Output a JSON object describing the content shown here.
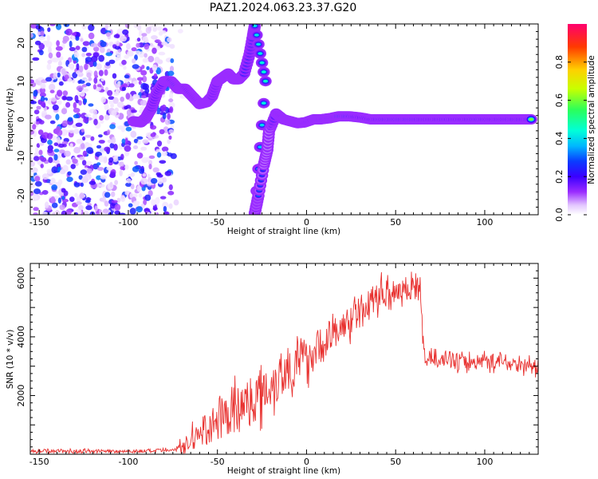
{
  "title": "PAZ1.2024.063.23.37.G20",
  "colors": {
    "snr_line": "#e8312f",
    "colormap": [
      "#ffffff",
      "#e3c7ff",
      "#9a2cff",
      "#3a00ff",
      "#0a3cff",
      "#00b7ff",
      "#00ffd9",
      "#2bff5a",
      "#c8ff00",
      "#ffd000",
      "#ff3a00",
      "#ff006e"
    ]
  },
  "chart_data": [
    {
      "type": "heatmap",
      "xlabel": "Height of straight line (km)",
      "ylabel": "Frequency (Hz)",
      "xlim": [
        -155,
        130
      ],
      "ylim": [
        -25,
        25
      ],
      "x_ticks": [
        -150,
        -100,
        -50,
        0,
        50,
        100
      ],
      "y_ticks": [
        -20,
        -10,
        0,
        10,
        20
      ],
      "colorbar": {
        "label": "Normalized spectral amplitude",
        "range": [
          0.0,
          1.0
        ],
        "ticks": [
          0.0,
          0.2,
          0.4,
          0.6,
          0.8
        ]
      },
      "ridge": [
        {
          "x": -97,
          "y": -0.5,
          "a": 0.45
        },
        {
          "x": -93,
          "y": -0.8,
          "a": 0.5
        },
        {
          "x": -90,
          "y": 0.5,
          "a": 0.4
        },
        {
          "x": -87,
          "y": 3,
          "a": 0.4
        },
        {
          "x": -84,
          "y": 7,
          "a": 0.45
        },
        {
          "x": -80,
          "y": 10,
          "a": 0.55
        },
        {
          "x": -76,
          "y": 10,
          "a": 0.6
        },
        {
          "x": -72,
          "y": 8,
          "a": 0.85
        },
        {
          "x": -68,
          "y": 8,
          "a": 0.6
        },
        {
          "x": -64,
          "y": 6,
          "a": 0.5
        },
        {
          "x": -60,
          "y": 4,
          "a": 0.45
        },
        {
          "x": -56,
          "y": 4.5,
          "a": 0.45
        },
        {
          "x": -53,
          "y": 6,
          "a": 0.4
        },
        {
          "x": -50,
          "y": 10,
          "a": 0.4
        },
        {
          "x": -47,
          "y": 11,
          "a": 0.5
        },
        {
          "x": -44,
          "y": 12,
          "a": 0.45
        },
        {
          "x": -41,
          "y": 10.5,
          "a": 0.45
        },
        {
          "x": -38,
          "y": 10.5,
          "a": 0.6
        },
        {
          "x": -35,
          "y": 12,
          "a": 0.45
        },
        {
          "x": -32,
          "y": 17,
          "a": 0.4
        },
        {
          "x": -30,
          "y": 22,
          "a": 0.4
        },
        {
          "x": -29,
          "y": 24.5,
          "a": 0.4
        },
        {
          "x": -23,
          "y": 10,
          "a": 0.45
        },
        {
          "x": -29,
          "y": -24.5,
          "a": 0.3
        },
        {
          "x": -27,
          "y": -20,
          "a": 0.3
        },
        {
          "x": -24,
          "y": -12,
          "a": 0.25
        },
        {
          "x": -22,
          "y": -8,
          "a": 0.25
        },
        {
          "x": -21,
          "y": -3,
          "a": 0.25
        },
        {
          "x": -17,
          "y": 1.5,
          "a": 0.5
        },
        {
          "x": -13,
          "y": 0,
          "a": 0.5
        },
        {
          "x": -9,
          "y": -0.5,
          "a": 0.5
        },
        {
          "x": -5,
          "y": -1,
          "a": 0.45
        },
        {
          "x": -1,
          "y": -0.8,
          "a": 0.5
        },
        {
          "x": 4,
          "y": 0,
          "a": 0.55
        },
        {
          "x": 8,
          "y": 0,
          "a": 0.7
        },
        {
          "x": 13,
          "y": 0.3,
          "a": 0.65
        },
        {
          "x": 18,
          "y": 0.8,
          "a": 0.85
        },
        {
          "x": 24,
          "y": 0.8,
          "a": 0.8
        },
        {
          "x": 30,
          "y": 0.5,
          "a": 0.6
        },
        {
          "x": 36,
          "y": 0,
          "a": 0.55
        },
        {
          "x": 42,
          "y": 0,
          "a": 0.65
        },
        {
          "x": 48,
          "y": 0,
          "a": 0.7
        },
        {
          "x": 54,
          "y": 0,
          "a": 0.75
        },
        {
          "x": 60,
          "y": 0,
          "a": 0.75
        },
        {
          "x": 66,
          "y": 0,
          "a": 0.6
        },
        {
          "x": 72,
          "y": 0,
          "a": 0.55
        },
        {
          "x": 78,
          "y": 0,
          "a": 0.65
        },
        {
          "x": 84,
          "y": 0,
          "a": 0.6
        },
        {
          "x": 90,
          "y": 0,
          "a": 0.55
        },
        {
          "x": 96,
          "y": 0,
          "a": 0.7
        },
        {
          "x": 102,
          "y": 0,
          "a": 0.6
        },
        {
          "x": 108,
          "y": 0,
          "a": 0.55
        },
        {
          "x": 114,
          "y": 0,
          "a": 0.6
        },
        {
          "x": 120,
          "y": 0,
          "a": 0.65
        },
        {
          "x": 126,
          "y": 0,
          "a": 0.6
        }
      ],
      "noise_region": {
        "xmin": -155,
        "xmax": -75,
        "amplitude_max": 0.3
      }
    },
    {
      "type": "line",
      "xlabel": "Height of straight line (km)",
      "ylabel": "SNR (10 * v/v)",
      "xlim": [
        -155,
        130
      ],
      "ylim": [
        0,
        6500
      ],
      "x_ticks": [
        -150,
        -100,
        -50,
        0,
        50,
        100
      ],
      "y_ticks": [
        2000,
        4000,
        6000
      ],
      "series": [
        {
          "trend": [
            {
              "x": -155,
              "y": 120
            },
            {
              "x": -120,
              "y": 100
            },
            {
              "x": -90,
              "y": 110
            },
            {
              "x": -75,
              "y": 130
            },
            {
              "x": -68,
              "y": 300
            },
            {
              "x": -60,
              "y": 700
            },
            {
              "x": -50,
              "y": 1100
            },
            {
              "x": -40,
              "y": 1500
            },
            {
              "x": -30,
              "y": 1900
            },
            {
              "x": -20,
              "y": 2400
            },
            {
              "x": -10,
              "y": 2900
            },
            {
              "x": 0,
              "y": 3300
            },
            {
              "x": 10,
              "y": 3800
            },
            {
              "x": 20,
              "y": 4300
            },
            {
              "x": 30,
              "y": 4900
            },
            {
              "x": 40,
              "y": 5400
            },
            {
              "x": 50,
              "y": 5600
            },
            {
              "x": 60,
              "y": 5700
            },
            {
              "x": 64,
              "y": 5600
            },
            {
              "x": 66,
              "y": 3300
            },
            {
              "x": 75,
              "y": 3300
            },
            {
              "x": 90,
              "y": 3100
            },
            {
              "x": 100,
              "y": 3200
            },
            {
              "x": 115,
              "y": 3100
            },
            {
              "x": 130,
              "y": 2950
            }
          ],
          "noise": [
            {
              "x": -155,
              "y": 60
            },
            {
              "x": -75,
              "y": 60
            },
            {
              "x": -68,
              "y": 300
            },
            {
              "x": -50,
              "y": 700
            },
            {
              "x": -20,
              "y": 900
            },
            {
              "x": 0,
              "y": 700
            },
            {
              "x": 30,
              "y": 500
            },
            {
              "x": 64,
              "y": 450
            },
            {
              "x": 66,
              "y": 300
            },
            {
              "x": 130,
              "y": 250
            }
          ]
        }
      ]
    }
  ]
}
